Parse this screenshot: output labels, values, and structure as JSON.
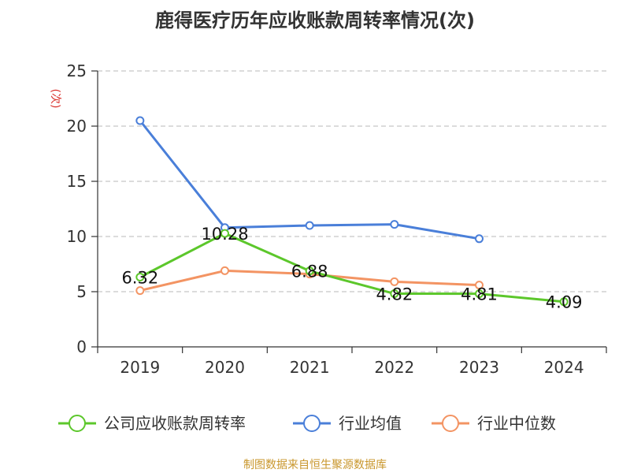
{
  "chart_data": {
    "type": "line",
    "title": "鹿得医疗历年应收账款周转率情况(次)",
    "ylabel": "(次)",
    "ylabel_color": "#d9312c",
    "xlabel": "",
    "categories": [
      "2019",
      "2020",
      "2021",
      "2022",
      "2023",
      "2024"
    ],
    "ylim": [
      0,
      25
    ],
    "yticks": [
      0,
      5,
      10,
      15,
      20,
      25
    ],
    "grid": true,
    "legend_position": "bottom",
    "series": [
      {
        "name": "公司应收账款周转率",
        "color": "#5cc72b",
        "values": [
          6.32,
          10.28,
          6.88,
          4.82,
          4.81,
          4.09
        ],
        "labels": [
          "6.32",
          "10.28",
          "6.88",
          "4.82",
          "4.81",
          "4.09"
        ]
      },
      {
        "name": "行业均值",
        "color": "#4a7fd9",
        "values": [
          20.5,
          10.8,
          11.0,
          11.1,
          9.8,
          null
        ]
      },
      {
        "name": "行业中位数",
        "color": "#f39463",
        "values": [
          5.1,
          6.9,
          6.6,
          5.9,
          5.6,
          null
        ]
      }
    ]
  },
  "source": {
    "text": "制图数据来自恒生聚源数据库",
    "color": "#c9972d"
  }
}
